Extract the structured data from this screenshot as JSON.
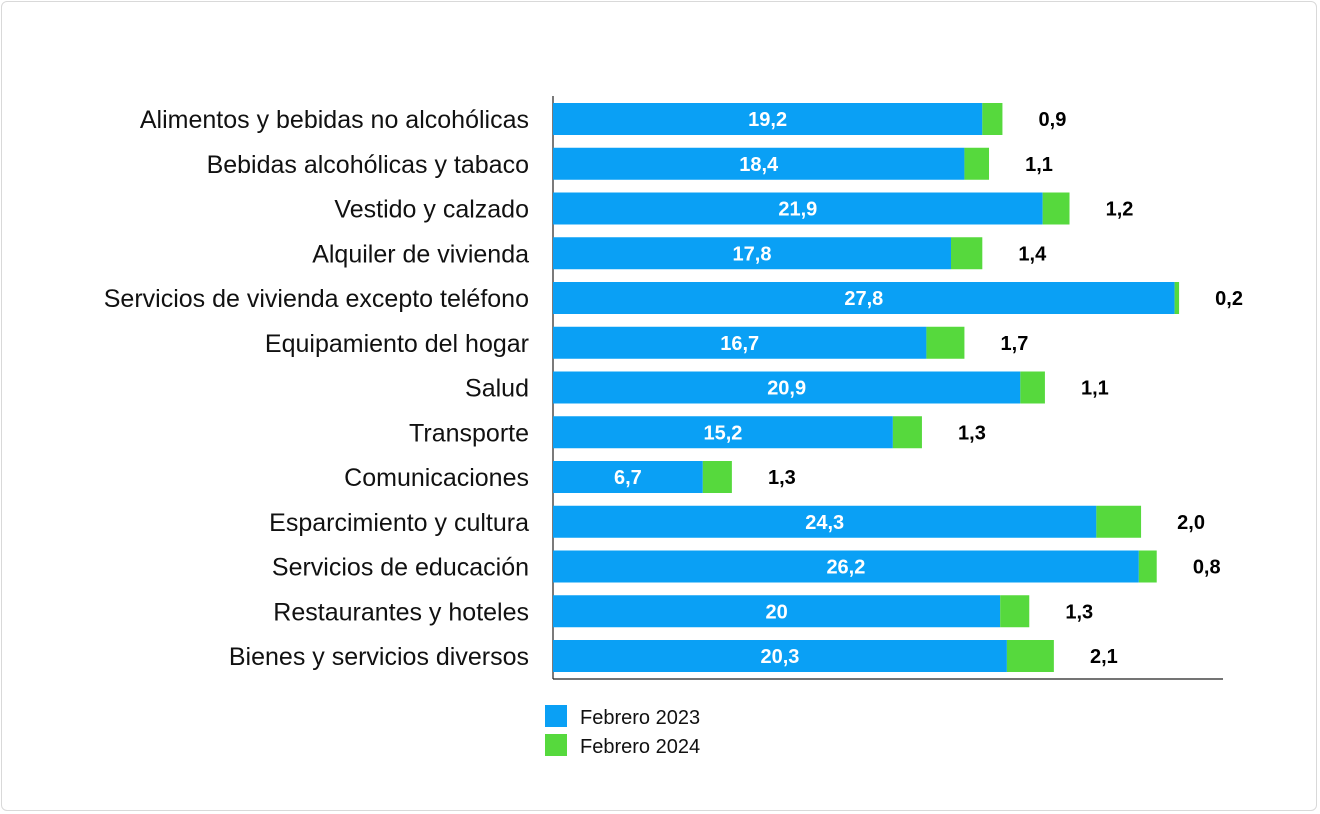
{
  "chart_data": {
    "type": "bar",
    "orientation": "horizontal",
    "stacked": true,
    "title": "",
    "xlabel": "",
    "ylabel": "",
    "grid": false,
    "legend_position": "bottom-left",
    "categories": [
      "Alimentos y bebidas no alcohólicas",
      "Bebidas alcohólicas y tabaco",
      "Vestido y calzado",
      "Alquiler de vivienda",
      "Servicios de vivienda excepto teléfono",
      "Equipamiento del hogar",
      "Salud",
      "Transporte",
      "Comunicaciones",
      "Esparcimiento y cultura",
      "Servicios de educación",
      "Restaurantes y hoteles",
      "Bienes y servicios diversos"
    ],
    "series": [
      {
        "name": "Febrero 2023",
        "color": "#0aa0f5",
        "values": [
          19.2,
          18.4,
          21.9,
          17.8,
          27.8,
          16.7,
          20.9,
          15.2,
          6.7,
          24.3,
          26.2,
          20,
          20.3
        ],
        "labels": [
          "19,2",
          "18,4",
          "21,9",
          "17,8",
          "27,8",
          "16,7",
          "20,9",
          "15,2",
          "6,7",
          "24,3",
          "26,2",
          "20",
          "20,3"
        ]
      },
      {
        "name": "Febrero 2024",
        "color": "#56d93d",
        "values": [
          0.9,
          1.1,
          1.2,
          1.4,
          0.2,
          1.7,
          1.1,
          1.3,
          1.3,
          2.0,
          0.8,
          1.3,
          2.1
        ],
        "labels": [
          "0,9",
          "1,1",
          "1,2",
          "1,4",
          "0,2",
          "1,7",
          "1,1",
          "1,3",
          "1,3",
          "2,0",
          "0,8",
          "1,3",
          "2,1"
        ]
      }
    ]
  }
}
